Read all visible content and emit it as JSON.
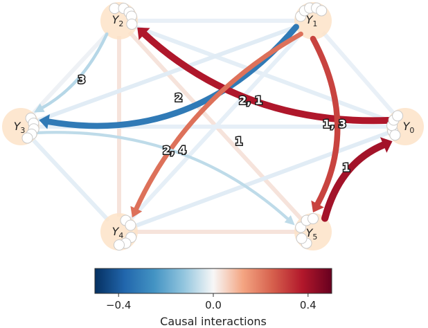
{
  "nodes": [
    {
      "id": "Y0",
      "base": "Y",
      "sub": "0"
    },
    {
      "id": "Y1",
      "base": "Y",
      "sub": "1"
    },
    {
      "id": "Y2",
      "base": "Y",
      "sub": "2"
    },
    {
      "id": "Y3",
      "base": "Y",
      "sub": "3"
    },
    {
      "id": "Y4",
      "base": "Y",
      "sub": "4"
    },
    {
      "id": "Y5",
      "base": "Y",
      "sub": "5"
    }
  ],
  "edges": [
    {
      "from": "Y1",
      "to": "Y3",
      "label": "2",
      "value": -0.32
    },
    {
      "from": "Y0",
      "to": "Y2",
      "label": "2, 1",
      "value": 0.38
    },
    {
      "from": "Y1",
      "to": "Y5",
      "label": "1, 3",
      "value": 0.3
    },
    {
      "from": "Y1",
      "to": "Y4",
      "label": "1",
      "value": 0.22
    },
    {
      "from": "Y5",
      "to": "Y0",
      "label": "1",
      "value": 0.4
    },
    {
      "from": "Y2",
      "to": "Y3",
      "label": "3",
      "value": -0.08
    },
    {
      "from": "Y3",
      "to": "Y5",
      "label": "2, 4",
      "value": -0.07
    }
  ],
  "colorbar": {
    "min": -0.5,
    "max": 0.5,
    "ticks": [
      {
        "value": -0.4,
        "label": "−0.4"
      },
      {
        "value": 0.0,
        "label": "0.0"
      },
      {
        "value": 0.4,
        "label": "0.4"
      }
    ],
    "title": "Causal interactions"
  }
}
